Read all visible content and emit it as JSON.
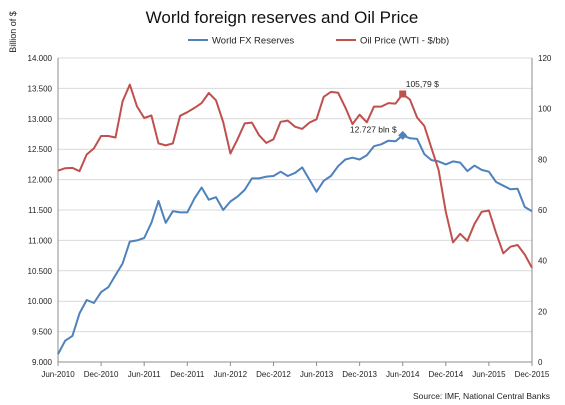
{
  "chart_data": {
    "type": "line",
    "title": "World foreign reserves and Oil Price",
    "ylabel": "Billion of $",
    "y2label": "",
    "source": "Source: IMF, National Central Banks",
    "x_tick_labels": [
      "Jun-2010",
      "Dec-2010",
      "Jun-2011",
      "Dec-2011",
      "Jun-2012",
      "Dec-2012",
      "Jun-2013",
      "Dec-2013",
      "Jun-2014",
      "Dec-2014",
      "Jun-2015",
      "Dec-2015"
    ],
    "y_left": {
      "min": 9000,
      "max": 14000,
      "step": 500,
      "tick_labels": [
        "9.000",
        "9.500",
        "10.000",
        "10.500",
        "11.000",
        "11.500",
        "12.000",
        "12.500",
        "13.000",
        "13.500",
        "14.000"
      ]
    },
    "y_right": {
      "min": 0,
      "max": 120,
      "step": 20,
      "tick_labels": [
        "0",
        "20",
        "40",
        "60",
        "80",
        "100",
        "120"
      ]
    },
    "grid": "horizontal",
    "legend_position": "top",
    "x": [
      "2010-06",
      "2010-07",
      "2010-08",
      "2010-09",
      "2010-10",
      "2010-11",
      "2010-12",
      "2011-01",
      "2011-02",
      "2011-03",
      "2011-04",
      "2011-05",
      "2011-06",
      "2011-07",
      "2011-08",
      "2011-09",
      "2011-10",
      "2011-11",
      "2011-12",
      "2012-01",
      "2012-02",
      "2012-03",
      "2012-04",
      "2012-05",
      "2012-06",
      "2012-07",
      "2012-08",
      "2012-09",
      "2012-10",
      "2012-11",
      "2012-12",
      "2013-01",
      "2013-02",
      "2013-03",
      "2013-04",
      "2013-05",
      "2013-06",
      "2013-07",
      "2013-08",
      "2013-09",
      "2013-10",
      "2013-11",
      "2013-12",
      "2014-01",
      "2014-02",
      "2014-03",
      "2014-04",
      "2014-05",
      "2014-06",
      "2014-07",
      "2014-08",
      "2014-09",
      "2014-10",
      "2014-11",
      "2014-12",
      "2015-01",
      "2015-02",
      "2015-03",
      "2015-04",
      "2015-05",
      "2015-06",
      "2015-07",
      "2015-08",
      "2015-09",
      "2015-10",
      "2015-11",
      "2015-12"
    ],
    "series": [
      {
        "name": "World FX Reserves",
        "axis": "left",
        "color": "#4f81bd",
        "values": [
          9130,
          9350,
          9430,
          9800,
          10020,
          9970,
          10150,
          10230,
          10430,
          10620,
          10980,
          11000,
          11040,
          11290,
          11650,
          11290,
          11480,
          11460,
          11460,
          11690,
          11870,
          11670,
          11710,
          11500,
          11640,
          11720,
          11830,
          12020,
          12020,
          12050,
          12060,
          12130,
          12060,
          12110,
          12200,
          12000,
          11800,
          11980,
          12060,
          12220,
          12330,
          12360,
          12330,
          12400,
          12550,
          12580,
          12640,
          12630,
          12727,
          12680,
          12670,
          12420,
          12320,
          12300,
          12250,
          12300,
          12280,
          12140,
          12230,
          12160,
          12130,
          11960,
          11900,
          11840,
          11850,
          11550,
          11480
        ]
      },
      {
        "name": "Oil Price (WTI - $/bb)",
        "axis": "right",
        "color": "#c0504d",
        "values": [
          75.5,
          76.5,
          76.6,
          75.3,
          81.9,
          84.3,
          89.2,
          89.2,
          88.6,
          102.9,
          109.5,
          100.9,
          96.3,
          97.3,
          86.3,
          85.5,
          86.3,
          97.2,
          98.6,
          100.3,
          102.2,
          106.2,
          103.3,
          94.7,
          82.3,
          87.9,
          94.2,
          94.5,
          89.5,
          86.5,
          87.9,
          94.8,
          95.3,
          92.9,
          92.0,
          94.5,
          95.8,
          104.7,
          106.6,
          106.3,
          100.5,
          93.9,
          97.6,
          94.6,
          100.8,
          100.8,
          102.2,
          102.0,
          105.79,
          103.6,
          96.5,
          93.2,
          84.4,
          75.8,
          59.3,
          47.2,
          50.6,
          47.8,
          54.5,
          59.3,
          59.8,
          50.9,
          42.9,
          45.5,
          46.2,
          42.4,
          37.2
        ]
      }
    ],
    "annotations": [
      {
        "label": "105,79 $",
        "x": "2014-06",
        "value": 105.79,
        "series": "Oil Price (WTI - $/bb)"
      },
      {
        "label": "12.727 bln $",
        "x": "2014-06",
        "value": 12727,
        "series": "World FX Reserves"
      }
    ]
  }
}
